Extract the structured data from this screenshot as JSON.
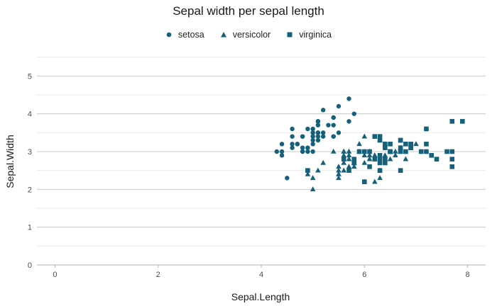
{
  "chart_data": {
    "type": "scatter",
    "title": "Sepal width per sepal length",
    "xlabel": "Sepal.Length",
    "ylabel": "Sepal.Width",
    "xlim": [
      -0.35,
      8.35
    ],
    "ylim": [
      0,
      5.55
    ],
    "xticks": [
      "0",
      "2",
      "4",
      "6",
      "8"
    ],
    "yticks": [
      "0",
      "1",
      "2",
      "3",
      "4",
      "5"
    ],
    "grid": true,
    "legend_position": "top",
    "point_color": "#15607a",
    "series": [
      {
        "name": "setosa",
        "shape": "circle",
        "points": [
          [
            5.1,
            3.5
          ],
          [
            4.9,
            3.0
          ],
          [
            4.7,
            3.2
          ],
          [
            4.6,
            3.1
          ],
          [
            5.0,
            3.6
          ],
          [
            5.4,
            3.9
          ],
          [
            4.6,
            3.4
          ],
          [
            5.0,
            3.4
          ],
          [
            4.4,
            2.9
          ],
          [
            4.9,
            3.1
          ],
          [
            5.4,
            3.7
          ],
          [
            4.8,
            3.4
          ],
          [
            4.8,
            3.0
          ],
          [
            4.3,
            3.0
          ],
          [
            5.8,
            4.0
          ],
          [
            5.7,
            4.4
          ],
          [
            5.4,
            3.9
          ],
          [
            5.1,
            3.5
          ],
          [
            5.7,
            3.8
          ],
          [
            5.1,
            3.8
          ],
          [
            5.4,
            3.4
          ],
          [
            5.1,
            3.7
          ],
          [
            4.6,
            3.6
          ],
          [
            5.1,
            3.3
          ],
          [
            4.8,
            3.4
          ],
          [
            5.0,
            3.0
          ],
          [
            5.0,
            3.4
          ],
          [
            5.2,
            3.5
          ],
          [
            5.2,
            3.4
          ],
          [
            4.7,
            3.2
          ],
          [
            4.8,
            3.1
          ],
          [
            5.4,
            3.4
          ],
          [
            5.2,
            4.1
          ],
          [
            5.5,
            4.2
          ],
          [
            4.9,
            3.1
          ],
          [
            5.0,
            3.2
          ],
          [
            5.5,
            3.5
          ],
          [
            4.9,
            3.6
          ],
          [
            4.4,
            3.0
          ],
          [
            5.1,
            3.4
          ],
          [
            5.0,
            3.5
          ],
          [
            4.5,
            2.3
          ],
          [
            4.4,
            3.2
          ],
          [
            5.0,
            3.5
          ],
          [
            5.1,
            3.8
          ],
          [
            4.8,
            3.0
          ],
          [
            5.1,
            3.8
          ],
          [
            4.6,
            3.2
          ],
          [
            5.3,
            3.7
          ],
          [
            5.0,
            3.3
          ]
        ]
      },
      {
        "name": "versicolor",
        "shape": "triangle",
        "points": [
          [
            7.0,
            3.2
          ],
          [
            6.4,
            3.2
          ],
          [
            6.9,
            3.1
          ],
          [
            5.5,
            2.3
          ],
          [
            6.5,
            2.8
          ],
          [
            5.7,
            2.8
          ],
          [
            6.3,
            3.3
          ],
          [
            4.9,
            2.4
          ],
          [
            6.6,
            2.9
          ],
          [
            5.2,
            2.7
          ],
          [
            5.0,
            2.0
          ],
          [
            5.9,
            3.0
          ],
          [
            6.0,
            2.2
          ],
          [
            6.1,
            2.9
          ],
          [
            5.6,
            2.9
          ],
          [
            6.7,
            3.1
          ],
          [
            5.6,
            3.0
          ],
          [
            5.8,
            2.7
          ],
          [
            6.2,
            2.2
          ],
          [
            5.6,
            2.5
          ],
          [
            5.9,
            3.2
          ],
          [
            6.1,
            2.8
          ],
          [
            6.3,
            2.5
          ],
          [
            6.1,
            2.8
          ],
          [
            6.4,
            2.9
          ],
          [
            6.6,
            3.0
          ],
          [
            6.8,
            2.8
          ],
          [
            6.7,
            3.0
          ],
          [
            6.0,
            2.9
          ],
          [
            5.7,
            2.6
          ],
          [
            5.5,
            2.4
          ],
          [
            5.5,
            2.4
          ],
          [
            5.8,
            2.7
          ],
          [
            6.0,
            2.7
          ],
          [
            5.4,
            3.0
          ],
          [
            6.0,
            3.4
          ],
          [
            6.7,
            3.1
          ],
          [
            6.3,
            2.3
          ],
          [
            5.6,
            3.0
          ],
          [
            5.5,
            2.5
          ],
          [
            5.5,
            2.6
          ],
          [
            6.1,
            3.0
          ],
          [
            5.8,
            2.6
          ],
          [
            5.0,
            2.3
          ],
          [
            5.6,
            2.7
          ],
          [
            5.7,
            3.0
          ],
          [
            5.7,
            2.9
          ],
          [
            6.2,
            2.9
          ],
          [
            5.1,
            2.5
          ],
          [
            5.7,
            2.8
          ]
        ]
      },
      {
        "name": "virginica",
        "shape": "square",
        "points": [
          [
            6.3,
            3.3
          ],
          [
            5.8,
            2.7
          ],
          [
            7.1,
            3.0
          ],
          [
            6.3,
            2.9
          ],
          [
            6.5,
            3.0
          ],
          [
            7.6,
            3.0
          ],
          [
            4.9,
            2.5
          ],
          [
            7.3,
            2.9
          ],
          [
            6.7,
            2.5
          ],
          [
            7.2,
            3.6
          ],
          [
            6.5,
            3.2
          ],
          [
            6.4,
            2.7
          ],
          [
            6.8,
            3.0
          ],
          [
            5.7,
            2.5
          ],
          [
            5.8,
            2.8
          ],
          [
            6.4,
            3.2
          ],
          [
            6.5,
            3.0
          ],
          [
            7.7,
            3.8
          ],
          [
            7.7,
            2.6
          ],
          [
            6.0,
            2.2
          ],
          [
            6.9,
            3.2
          ],
          [
            5.6,
            2.8
          ],
          [
            7.7,
            2.8
          ],
          [
            6.3,
            2.7
          ],
          [
            6.7,
            3.3
          ],
          [
            7.2,
            3.2
          ],
          [
            6.2,
            2.8
          ],
          [
            6.1,
            3.0
          ],
          [
            6.4,
            2.8
          ],
          [
            7.2,
            3.0
          ],
          [
            7.4,
            2.8
          ],
          [
            7.9,
            3.8
          ],
          [
            6.4,
            2.8
          ],
          [
            6.3,
            2.8
          ],
          [
            6.1,
            2.6
          ],
          [
            7.7,
            3.0
          ],
          [
            6.3,
            3.4
          ],
          [
            6.4,
            3.1
          ],
          [
            6.0,
            3.0
          ],
          [
            6.9,
            3.1
          ],
          [
            6.7,
            3.1
          ],
          [
            6.9,
            3.1
          ],
          [
            5.8,
            2.7
          ],
          [
            6.8,
            3.2
          ],
          [
            6.7,
            3.3
          ],
          [
            6.7,
            3.0
          ],
          [
            6.3,
            2.5
          ],
          [
            6.5,
            3.0
          ],
          [
            6.2,
            3.4
          ],
          [
            5.9,
            3.0
          ]
        ]
      }
    ]
  }
}
